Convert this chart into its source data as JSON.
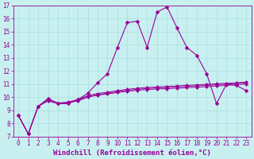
{
  "x": [
    0,
    1,
    2,
    3,
    4,
    5,
    6,
    7,
    8,
    9,
    10,
    11,
    12,
    13,
    14,
    15,
    16,
    17,
    18,
    19,
    20,
    21,
    22,
    23
  ],
  "line_main": [
    8.6,
    7.2,
    9.3,
    9.9,
    9.5,
    9.5,
    9.8,
    10.3,
    11.1,
    11.8,
    13.8,
    15.7,
    15.8,
    13.8,
    16.5,
    16.9,
    15.3,
    13.8,
    13.2,
    11.8,
    9.5,
    11.0,
    10.9,
    10.5
  ],
  "line_s1": [
    8.6,
    7.2,
    9.3,
    9.7,
    9.5,
    9.6,
    9.7,
    10.0,
    10.15,
    10.25,
    10.35,
    10.45,
    10.52,
    10.58,
    10.62,
    10.65,
    10.68,
    10.72,
    10.76,
    10.8,
    10.85,
    10.9,
    10.95,
    11.0
  ],
  "line_s2": [
    8.6,
    7.2,
    9.3,
    9.8,
    9.52,
    9.58,
    9.75,
    10.05,
    10.2,
    10.3,
    10.42,
    10.52,
    10.6,
    10.66,
    10.7,
    10.74,
    10.78,
    10.82,
    10.86,
    10.9,
    10.95,
    11.0,
    11.05,
    11.1
  ],
  "line_s3": [
    8.6,
    7.2,
    9.3,
    9.85,
    9.55,
    9.62,
    9.82,
    10.12,
    10.28,
    10.38,
    10.5,
    10.6,
    10.68,
    10.74,
    10.78,
    10.82,
    10.86,
    10.9,
    10.94,
    10.98,
    11.02,
    11.06,
    11.1,
    11.15
  ],
  "line_color": "#990099",
  "bg_color": "#c8f0f0",
  "grid_color": "#aadddd",
  "xlabel": "Windchill (Refroidissement éolien,°C)",
  "ylim": [
    7,
    17
  ],
  "xlim": [
    -0.5,
    23.5
  ],
  "yticks": [
    7,
    8,
    9,
    10,
    11,
    12,
    13,
    14,
    15,
    16,
    17
  ],
  "xticks": [
    0,
    1,
    2,
    3,
    4,
    5,
    6,
    7,
    8,
    9,
    10,
    11,
    12,
    13,
    14,
    15,
    16,
    17,
    18,
    19,
    20,
    21,
    22,
    23
  ],
  "marker": "D",
  "markersize": 2.5,
  "linewidth": 0.8,
  "xlabel_fontsize": 6.5,
  "tick_fontsize": 5.5
}
